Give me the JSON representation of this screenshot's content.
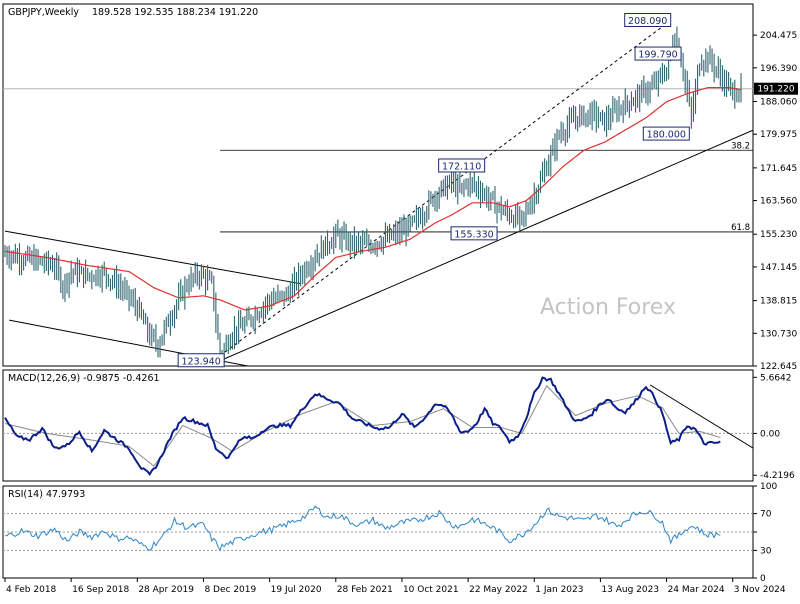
{
  "chart_data": [
    {
      "type": "line",
      "panel": "price",
      "title": "GBPJPY,Weekly",
      "ohlc_label": "189.528 192.535 188.234 191.220",
      "last_price": 191.22,
      "last_price_label": "191.220",
      "watermark": "Action Forex",
      "ylim": [
        122.645,
        212.17
      ],
      "y_ticks": [
        {
          "value": 204.475,
          "label": "204.475"
        },
        {
          "value": 196.39,
          "label": "196.390"
        },
        {
          "value": 188.06,
          "label": "188.060"
        },
        {
          "value": 179.975,
          "label": "179.975"
        },
        {
          "value": 171.645,
          "label": "171.645"
        },
        {
          "value": 163.56,
          "label": "163.560"
        },
        {
          "value": 155.23,
          "label": "155.230"
        },
        {
          "value": 147.145,
          "label": "147.145"
        },
        {
          "value": 138.815,
          "label": "138.815"
        },
        {
          "value": 130.73,
          "label": "130.730"
        },
        {
          "value": 122.645,
          "label": "122.645"
        }
      ],
      "x_ticks": [
        "4 Feb 2018",
        "16 Sep 2018",
        "28 Apr 2019",
        "8 Dec 2019",
        "19 Jul 2020",
        "28 Feb 2021",
        "10 Oct 2021",
        "22 May 2022",
        "1 Jan 2023",
        "13 Aug 2023",
        "24 Mar 2024",
        "3 Nov 2024"
      ],
      "x_tick_index": [
        0,
        32,
        64,
        96,
        128,
        160,
        192,
        224,
        256,
        288,
        320,
        352
      ],
      "price_points": [
        [
          0,
          150.5
        ],
        [
          8,
          149.5
        ],
        [
          16,
          148.5
        ],
        [
          24,
          147.5
        ],
        [
          28,
          142.5
        ],
        [
          32,
          146
        ],
        [
          40,
          145
        ],
        [
          48,
          145.5
        ],
        [
          56,
          142
        ],
        [
          64,
          137
        ],
        [
          70,
          130
        ],
        [
          74,
          128
        ],
        [
          80,
          135
        ],
        [
          88,
          143
        ],
        [
          94,
          145.5
        ],
        [
          100,
          143
        ],
        [
          104,
          125
        ],
        [
          110,
          131
        ],
        [
          116,
          133
        ],
        [
          122,
          136
        ],
        [
          128,
          139
        ],
        [
          136,
          140
        ],
        [
          144,
          146
        ],
        [
          152,
          151
        ],
        [
          160,
          155
        ],
        [
          168,
          153
        ],
        [
          176,
          152.5
        ],
        [
          184,
          154
        ],
        [
          192,
          156
        ],
        [
          198,
          158
        ],
        [
          204,
          162
        ],
        [
          208,
          165
        ],
        [
          216,
          168
        ],
        [
          220,
          166
        ],
        [
          224,
          168
        ],
        [
          228,
          167
        ],
        [
          234,
          164
        ],
        [
          238,
          162
        ],
        [
          244,
          160
        ],
        [
          250,
          158.5
        ],
        [
          256,
          165
        ],
        [
          262,
          172
        ],
        [
          268,
          180
        ],
        [
          276,
          184
        ],
        [
          284,
          185
        ],
        [
          290,
          183
        ],
        [
          296,
          186
        ],
        [
          302,
          188
        ],
        [
          308,
          190
        ],
        [
          314,
          192
        ],
        [
          320,
          196
        ],
        [
          324,
          205
        ],
        [
          328,
          196
        ],
        [
          332,
          184
        ],
        [
          336,
          198
        ],
        [
          340,
          199
        ],
        [
          344,
          196
        ],
        [
          348,
          193
        ],
        [
          352,
          190
        ],
        [
          356,
          191.22
        ]
      ],
      "ma_points": [
        [
          0,
          151
        ],
        [
          20,
          149.5
        ],
        [
          40,
          147.5
        ],
        [
          60,
          146
        ],
        [
          72,
          142
        ],
        [
          84,
          139.5
        ],
        [
          96,
          140
        ],
        [
          104,
          139
        ],
        [
          116,
          136.5
        ],
        [
          128,
          137.5
        ],
        [
          140,
          140
        ],
        [
          150,
          145
        ],
        [
          160,
          149.5
        ],
        [
          172,
          151
        ],
        [
          184,
          152
        ],
        [
          196,
          154
        ],
        [
          208,
          158
        ],
        [
          216,
          160
        ],
        [
          226,
          163
        ],
        [
          236,
          163
        ],
        [
          244,
          162
        ],
        [
          252,
          163.5
        ],
        [
          260,
          167
        ],
        [
          270,
          172
        ],
        [
          280,
          176
        ],
        [
          290,
          178
        ],
        [
          300,
          181
        ],
        [
          310,
          184
        ],
        [
          320,
          188
        ],
        [
          330,
          190
        ],
        [
          340,
          191.5
        ],
        [
          350,
          191.5
        ],
        [
          356,
          191
        ]
      ],
      "annotations": [
        {
          "label": "208.090",
          "x": 322,
          "y": 208.09
        },
        {
          "label": "199.790",
          "x": 327,
          "y": 199.79
        },
        {
          "label": "180.000",
          "x": 331,
          "y": 180.0
        },
        {
          "label": "172.110",
          "x": 232,
          "y": 172.11
        },
        {
          "label": "155.330",
          "x": 238,
          "y": 155.33
        },
        {
          "label": "123.940",
          "x": 106,
          "y": 123.94
        }
      ],
      "fib_levels": [
        {
          "label": "38.2",
          "value": 176.0,
          "x_start": 104
        },
        {
          "label": "61.8",
          "value": 155.8,
          "x_start": 104
        }
      ],
      "trendlines": [
        {
          "x1": 0,
          "y1": 156,
          "x2": 143,
          "y2": 143
        },
        {
          "x1": 2,
          "y1": 134,
          "x2": 126,
          "y2": 121.8
        },
        {
          "x1": 104,
          "y1": 123.94,
          "x2": 362,
          "y2": 181
        },
        {
          "x1": 104,
          "y1": 125.2,
          "x2": 322,
          "y2": 208.09
        }
      ]
    },
    {
      "type": "line",
      "panel": "macd",
      "title": "MACD(12,26,9) -0.9875 -0.4261",
      "y_ticks": [
        {
          "value": 5.6642,
          "label": "5.6642"
        },
        {
          "value": 0.0,
          "label": "0.00"
        },
        {
          "value": -4.2196,
          "label": "-4.2196"
        }
      ],
      "ylim": [
        -4.8,
        6.4
      ],
      "macd_points": [
        [
          0,
          1.5
        ],
        [
          6,
          -0.4
        ],
        [
          12,
          -0.6
        ],
        [
          18,
          0.5
        ],
        [
          24,
          -1.5
        ],
        [
          30,
          -1.2
        ],
        [
          36,
          0.2
        ],
        [
          42,
          -1.8
        ],
        [
          48,
          0.3
        ],
        [
          54,
          -0.6
        ],
        [
          60,
          -1.5
        ],
        [
          66,
          -3.5
        ],
        [
          70,
          -4.2
        ],
        [
          74,
          -3
        ],
        [
          80,
          -0.4
        ],
        [
          86,
          1.6
        ],
        [
          92,
          1.2
        ],
        [
          98,
          0.8
        ],
        [
          102,
          -1.5
        ],
        [
          108,
          -2.5
        ],
        [
          112,
          -1
        ],
        [
          116,
          -0.4
        ],
        [
          120,
          -0.5
        ],
        [
          126,
          0.5
        ],
        [
          132,
          0.8
        ],
        [
          138,
          0.8
        ],
        [
          144,
          2.5
        ],
        [
          150,
          4
        ],
        [
          156,
          3.5
        ],
        [
          162,
          3
        ],
        [
          168,
          1.5
        ],
        [
          174,
          1
        ],
        [
          180,
          0.5
        ],
        [
          186,
          0.6
        ],
        [
          192,
          2
        ],
        [
          198,
          0.6
        ],
        [
          204,
          1.8
        ],
        [
          208,
          3
        ],
        [
          212,
          2.8
        ],
        [
          216,
          1.9
        ],
        [
          220,
          0.2
        ],
        [
          224,
          0.2
        ],
        [
          228,
          1
        ],
        [
          232,
          2.5
        ],
        [
          236,
          1
        ],
        [
          240,
          0.5
        ],
        [
          244,
          -0.8
        ],
        [
          248,
          -0.3
        ],
        [
          252,
          1.5
        ],
        [
          256,
          4
        ],
        [
          260,
          5.6
        ],
        [
          264,
          5.4
        ],
        [
          268,
          4
        ],
        [
          272,
          2.5
        ],
        [
          276,
          1.2
        ],
        [
          280,
          1.4
        ],
        [
          284,
          2
        ],
        [
          288,
          3
        ],
        [
          292,
          3.5
        ],
        [
          296,
          2.5
        ],
        [
          300,
          2.2
        ],
        [
          304,
          3
        ],
        [
          310,
          4.8
        ],
        [
          314,
          3.7
        ],
        [
          318,
          2
        ],
        [
          322,
          -1
        ],
        [
          326,
          -0.6
        ],
        [
          330,
          0.8
        ],
        [
          334,
          0.4
        ],
        [
          338,
          -1
        ],
        [
          342,
          -1
        ],
        [
          346,
          -0.9
        ]
      ],
      "signal_points": [
        [
          0,
          1
        ],
        [
          20,
          0
        ],
        [
          40,
          -0.6
        ],
        [
          60,
          -1.3
        ],
        [
          72,
          -3.3
        ],
        [
          86,
          0.8
        ],
        [
          100,
          -0.5
        ],
        [
          110,
          -1.8
        ],
        [
          126,
          0.2
        ],
        [
          144,
          2
        ],
        [
          160,
          3.2
        ],
        [
          178,
          0.8
        ],
        [
          196,
          1.2
        ],
        [
          212,
          2.5
        ],
        [
          226,
          0.6
        ],
        [
          240,
          0.6
        ],
        [
          250,
          0
        ],
        [
          262,
          4.8
        ],
        [
          276,
          1.8
        ],
        [
          290,
          3
        ],
        [
          306,
          3.8
        ],
        [
          318,
          2.6
        ],
        [
          326,
          0
        ],
        [
          336,
          0.2
        ],
        [
          346,
          -0.4
        ]
      ],
      "trendlines": [
        {
          "x1": 312,
          "y1": 4.9,
          "x2": 362,
          "y2": -1.5
        }
      ]
    },
    {
      "type": "line",
      "panel": "rsi",
      "title": "RSI(14) 47.9793",
      "y_ticks": [
        {
          "value": 100,
          "label": "100"
        },
        {
          "value": 70,
          "label": "70"
        },
        {
          "value": 50,
          "label": ""
        },
        {
          "value": 30,
          "label": "30"
        },
        {
          "value": 0,
          "label": "0"
        }
      ],
      "ylim": [
        0,
        100
      ],
      "rsi_points": [
        [
          0,
          45
        ],
        [
          8,
          51
        ],
        [
          16,
          46
        ],
        [
          24,
          53
        ],
        [
          30,
          40
        ],
        [
          36,
          50
        ],
        [
          42,
          45
        ],
        [
          48,
          51
        ],
        [
          54,
          43
        ],
        [
          60,
          44
        ],
        [
          66,
          36
        ],
        [
          70,
          33
        ],
        [
          76,
          44
        ],
        [
          82,
          62
        ],
        [
          88,
          55
        ],
        [
          96,
          58
        ],
        [
          100,
          43
        ],
        [
          104,
          33
        ],
        [
          110,
          39
        ],
        [
          116,
          44
        ],
        [
          122,
          49
        ],
        [
          128,
          52
        ],
        [
          134,
          56
        ],
        [
          140,
          62
        ],
        [
          146,
          68
        ],
        [
          150,
          77
        ],
        [
          156,
          66
        ],
        [
          162,
          68
        ],
        [
          168,
          60
        ],
        [
          172,
          58
        ],
        [
          178,
          63
        ],
        [
          184,
          54
        ],
        [
          192,
          60
        ],
        [
          198,
          62
        ],
        [
          204,
          66
        ],
        [
          210,
          71
        ],
        [
          216,
          58
        ],
        [
          220,
          56
        ],
        [
          226,
          64
        ],
        [
          232,
          59
        ],
        [
          238,
          52
        ],
        [
          244,
          41
        ],
        [
          250,
          47
        ],
        [
          256,
          58
        ],
        [
          262,
          74
        ],
        [
          268,
          67
        ],
        [
          274,
          65
        ],
        [
          280,
          62
        ],
        [
          286,
          68
        ],
        [
          290,
          64
        ],
        [
          296,
          56
        ],
        [
          302,
          66
        ],
        [
          308,
          73
        ],
        [
          314,
          69
        ],
        [
          318,
          60
        ],
        [
          322,
          41
        ],
        [
          326,
          46
        ],
        [
          330,
          55
        ],
        [
          334,
          56
        ],
        [
          338,
          48
        ],
        [
          342,
          47
        ],
        [
          346,
          48
        ]
      ]
    }
  ]
}
